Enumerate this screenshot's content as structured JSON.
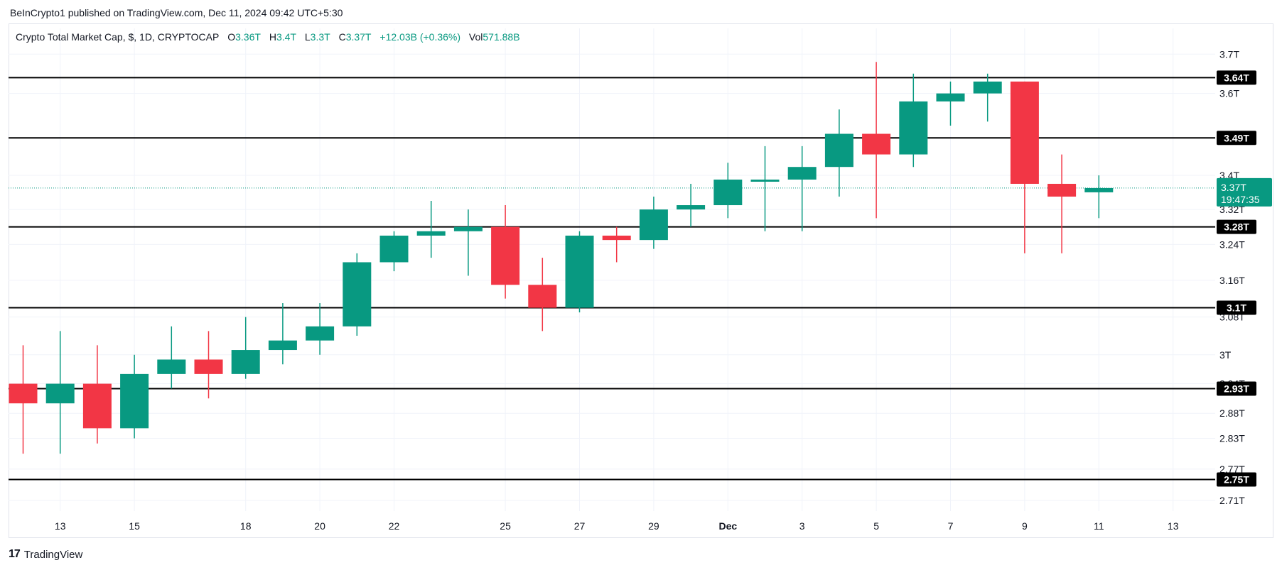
{
  "publisher_line": "BeInCrypto1 published on TradingView.com, Dec 11, 2024 09:42 UTC+5:30",
  "legend": {
    "symbol": "Crypto Total Market Cap, $, 1D, CRYPTOCAP",
    "open_label": "O",
    "open": "3.36T",
    "high_label": "H",
    "high": "3.4T",
    "low_label": "L",
    "low": "3.3T",
    "close_label": "C",
    "close": "3.37T",
    "change": "+12.03B (+0.36%)",
    "vol_label": "Vol",
    "vol": "571.88B"
  },
  "footer": {
    "logo_text": "TradingView",
    "logo_mark": "17"
  },
  "colors": {
    "up": "#089981",
    "down": "#f23645",
    "level": "#000000",
    "grid": "#f0f3fa",
    "text": "#131722"
  },
  "chart_data": {
    "type": "candlestick",
    "y_ticks": [
      "3.7T",
      "3.6T",
      "3.4T",
      "3.32T",
      "3.24T",
      "3.16T",
      "3.08T",
      "3T",
      "2.94T",
      "2.88T",
      "2.83T",
      "2.77T",
      "2.71T"
    ],
    "x_ticks": [
      "13",
      "15",
      "18",
      "20",
      "22",
      "25",
      "27",
      "29",
      "Dec",
      "3",
      "5",
      "7",
      "9",
      "11",
      "13"
    ],
    "horizontal_levels": [
      "3.64T",
      "3.49T",
      "3.28T",
      "3.1T",
      "2.93T",
      "2.75T"
    ],
    "last_price": {
      "label": "3.37T",
      "countdown": "19:47:35"
    },
    "candles": [
      {
        "date": "Nov 12",
        "open": 2.94,
        "high": 3.02,
        "low": 2.8,
        "close": 2.9
      },
      {
        "date": "Nov 13",
        "open": 2.9,
        "high": 3.05,
        "low": 2.8,
        "close": 2.94
      },
      {
        "date": "Nov 14",
        "open": 2.94,
        "high": 3.02,
        "low": 2.82,
        "close": 2.85
      },
      {
        "date": "Nov 15",
        "open": 2.85,
        "high": 3.0,
        "low": 2.83,
        "close": 2.96
      },
      {
        "date": "Nov 16",
        "open": 2.96,
        "high": 3.06,
        "low": 2.93,
        "close": 2.99
      },
      {
        "date": "Nov 17",
        "open": 2.99,
        "high": 3.05,
        "low": 2.91,
        "close": 2.96
      },
      {
        "date": "Nov 18",
        "open": 2.96,
        "high": 3.08,
        "low": 2.95,
        "close": 3.01
      },
      {
        "date": "Nov 19",
        "open": 3.01,
        "high": 3.11,
        "low": 2.98,
        "close": 3.03
      },
      {
        "date": "Nov 20",
        "open": 3.03,
        "high": 3.11,
        "low": 3.0,
        "close": 3.06
      },
      {
        "date": "Nov 21",
        "open": 3.06,
        "high": 3.22,
        "low": 3.04,
        "close": 3.2
      },
      {
        "date": "Nov 22",
        "open": 3.2,
        "high": 3.27,
        "low": 3.18,
        "close": 3.26
      },
      {
        "date": "Nov 23",
        "open": 3.26,
        "high": 3.34,
        "low": 3.21,
        "close": 3.27
      },
      {
        "date": "Nov 24",
        "open": 3.27,
        "high": 3.32,
        "low": 3.17,
        "close": 3.28
      },
      {
        "date": "Nov 25",
        "open": 3.28,
        "high": 3.33,
        "low": 3.12,
        "close": 3.15
      },
      {
        "date": "Nov 26",
        "open": 3.15,
        "high": 3.21,
        "low": 3.05,
        "close": 3.1
      },
      {
        "date": "Nov 27",
        "open": 3.1,
        "high": 3.27,
        "low": 3.09,
        "close": 3.26
      },
      {
        "date": "Nov 28",
        "open": 3.26,
        "high": 3.28,
        "low": 3.2,
        "close": 3.25
      },
      {
        "date": "Nov 29",
        "open": 3.25,
        "high": 3.35,
        "low": 3.23,
        "close": 3.32
      },
      {
        "date": "Nov 30",
        "open": 3.32,
        "high": 3.38,
        "low": 3.28,
        "close": 3.33
      },
      {
        "date": "Dec 1",
        "open": 3.33,
        "high": 3.43,
        "low": 3.3,
        "close": 3.39
      },
      {
        "date": "Dec 2",
        "open": 3.39,
        "high": 3.47,
        "low": 3.27,
        "close": 3.39
      },
      {
        "date": "Dec 3",
        "open": 3.39,
        "high": 3.47,
        "low": 3.27,
        "close": 3.42
      },
      {
        "date": "Dec 4",
        "open": 3.42,
        "high": 3.56,
        "low": 3.35,
        "close": 3.5
      },
      {
        "date": "Dec 5",
        "open": 3.5,
        "high": 3.68,
        "low": 3.3,
        "close": 3.45
      },
      {
        "date": "Dec 6",
        "open": 3.45,
        "high": 3.65,
        "low": 3.42,
        "close": 3.58
      },
      {
        "date": "Dec 7",
        "open": 3.58,
        "high": 3.63,
        "low": 3.52,
        "close": 3.6
      },
      {
        "date": "Dec 8",
        "open": 3.6,
        "high": 3.65,
        "low": 3.53,
        "close": 3.63
      },
      {
        "date": "Dec 9",
        "open": 3.63,
        "high": 3.63,
        "low": 3.22,
        "close": 3.38
      },
      {
        "date": "Dec 10",
        "open": 3.38,
        "high": 3.45,
        "low": 3.22,
        "close": 3.35
      },
      {
        "date": "Dec 11",
        "open": 3.36,
        "high": 3.4,
        "low": 3.3,
        "close": 3.37
      }
    ]
  }
}
